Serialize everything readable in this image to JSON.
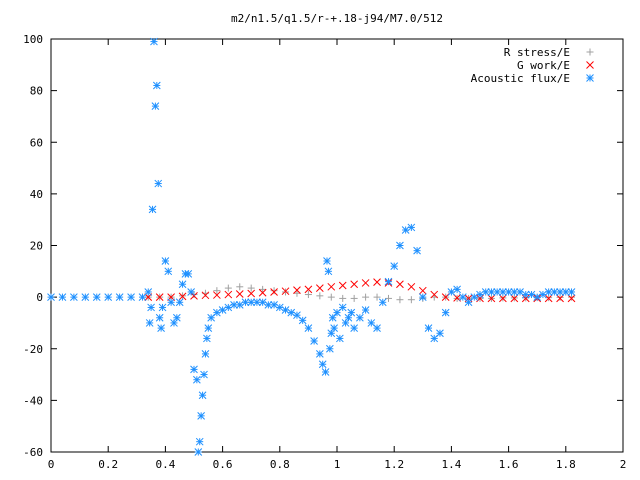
{
  "chart_data": {
    "type": "scatter",
    "title": "m2/n1.5/q1.5/r-+.18-j94/M7.0/512",
    "xlabel": "",
    "ylabel": "",
    "xlim": [
      0,
      2
    ],
    "ylim": [
      -60,
      100
    ],
    "xticks": [
      0,
      0.2,
      0.4,
      0.6,
      0.8,
      1,
      1.2,
      1.4,
      1.6,
      1.8,
      2
    ],
    "xtick_labels": [
      "0",
      "0.2",
      "0.4",
      "0.6",
      "0.8",
      "1",
      "1.2",
      "1.4",
      "1.6",
      "1.8",
      "2"
    ],
    "yticks": [
      -60,
      -40,
      -20,
      0,
      20,
      40,
      60,
      80,
      100
    ],
    "ytick_labels": [
      "-60",
      "-40",
      "-20",
      "0",
      "20",
      "40",
      "60",
      "80",
      "100"
    ],
    "grid": false,
    "legend_position": "top-right",
    "series": [
      {
        "name": "R stress/E",
        "marker": "+",
        "color": "#a0a0a0",
        "x": [
          0.34,
          0.38,
          0.42,
          0.46,
          0.5,
          0.54,
          0.58,
          0.62,
          0.66,
          0.7,
          0.74,
          0.78,
          0.82,
          0.86,
          0.9,
          0.94,
          0.98,
          1.02,
          1.06,
          1.1,
          1.14,
          1.18,
          1.22,
          1.26,
          1.3,
          1.34,
          1.38,
          1.42,
          1.46,
          1.5,
          1.54,
          1.58,
          1.62,
          1.66,
          1.7,
          1.74,
          1.78,
          1.82
        ],
        "y": [
          0,
          0,
          0,
          0.5,
          1,
          1.5,
          2.5,
          3.5,
          4,
          3.5,
          3,
          2.5,
          2,
          1.5,
          1,
          0.5,
          0,
          -0.5,
          -0.5,
          0,
          0,
          -0.5,
          -1,
          -1,
          -0.5,
          0,
          0,
          -0.5,
          -0.5,
          -0.5,
          -0.5,
          -0.3,
          -0.3,
          -0.3,
          -0.2,
          -0.2,
          -0.1,
          0
        ]
      },
      {
        "name": "G work/E",
        "marker": "x",
        "color": "#ff0000",
        "x": [
          0.34,
          0.38,
          0.42,
          0.46,
          0.5,
          0.54,
          0.58,
          0.62,
          0.66,
          0.7,
          0.74,
          0.78,
          0.82,
          0.86,
          0.9,
          0.94,
          0.98,
          1.02,
          1.06,
          1.1,
          1.14,
          1.18,
          1.22,
          1.26,
          1.3,
          1.34,
          1.38,
          1.42,
          1.46,
          1.5,
          1.54,
          1.58,
          1.62,
          1.66,
          1.7,
          1.74,
          1.78,
          1.82
        ],
        "y": [
          0,
          0,
          0,
          0.3,
          0.5,
          0.7,
          0.8,
          1,
          1.2,
          1.4,
          1.7,
          2,
          2.3,
          2.7,
          3,
          3.5,
          4,
          4.5,
          5,
          5.5,
          5.8,
          5.5,
          5,
          4,
          2.5,
          1,
          0,
          -0.3,
          -0.5,
          -0.5,
          -0.5,
          -0.5,
          -0.5,
          -0.5,
          -0.5,
          -0.5,
          -0.5,
          -0.5
        ]
      },
      {
        "name": "Acoustic flux/E",
        "marker": "*",
        "color": "#1e90ff",
        "x": [
          0,
          0.04,
          0.08,
          0.12,
          0.16,
          0.2,
          0.24,
          0.28,
          0.32,
          0.34,
          0.345,
          0.35,
          0.355,
          0.36,
          0.365,
          0.37,
          0.375,
          0.38,
          0.385,
          0.39,
          0.4,
          0.41,
          0.42,
          0.43,
          0.44,
          0.45,
          0.46,
          0.47,
          0.48,
          0.49,
          0.5,
          0.51,
          0.515,
          0.52,
          0.525,
          0.53,
          0.535,
          0.54,
          0.545,
          0.55,
          0.56,
          0.58,
          0.6,
          0.62,
          0.64,
          0.66,
          0.68,
          0.7,
          0.72,
          0.74,
          0.76,
          0.78,
          0.8,
          0.82,
          0.84,
          0.86,
          0.88,
          0.9,
          0.92,
          0.94,
          0.95,
          0.96,
          0.965,
          0.97,
          0.975,
          0.98,
          0.985,
          0.99,
          1.0,
          1.01,
          1.02,
          1.03,
          1.04,
          1.05,
          1.06,
          1.08,
          1.1,
          1.12,
          1.14,
          1.16,
          1.18,
          1.2,
          1.22,
          1.24,
          1.26,
          1.28,
          1.3,
          1.32,
          1.34,
          1.36,
          1.38,
          1.4,
          1.42,
          1.44,
          1.46,
          1.48,
          1.5,
          1.52,
          1.54,
          1.56,
          1.58,
          1.6,
          1.62,
          1.64,
          1.66,
          1.68,
          1.7,
          1.72,
          1.74,
          1.76,
          1.78,
          1.8,
          1.82
        ],
        "y": [
          0,
          0,
          0,
          0,
          0,
          0,
          0,
          0,
          0,
          2,
          -10,
          -4,
          34,
          99,
          74,
          82,
          44,
          -8,
          -12,
          -4,
          14,
          10,
          -2,
          -10,
          -8,
          -2,
          5,
          9,
          9,
          2,
          -28,
          -32,
          -60,
          -56,
          -46,
          -38,
          -30,
          -22,
          -16,
          -12,
          -8,
          -6,
          -5,
          -4,
          -3,
          -3,
          -2,
          -2,
          -2,
          -2,
          -3,
          -3,
          -4,
          -5,
          -6,
          -7,
          -9,
          -12,
          -17,
          -22,
          -26,
          -29,
          14,
          10,
          -20,
          -14,
          -8,
          -12,
          -6,
          -16,
          -4,
          -10,
          -8,
          -6,
          -12,
          -8,
          -5,
          -10,
          -12,
          -2,
          6,
          12,
          20,
          26,
          27,
          18,
          0,
          -12,
          -16,
          -14,
          -6,
          2,
          3,
          0,
          -2,
          0,
          1,
          2,
          2,
          2,
          2,
          2,
          2,
          2,
          1,
          1,
          0,
          1,
          2,
          2,
          2,
          2,
          2
        ]
      }
    ]
  }
}
